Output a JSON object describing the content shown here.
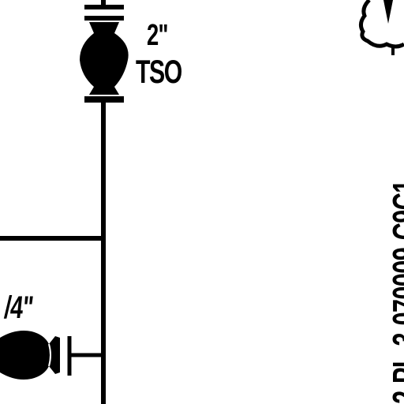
{
  "valve_top": {
    "size": "2\"",
    "type": "TSO"
  },
  "valve_bottom": {
    "size": "/4\""
  },
  "line_tag": "2-PL-3-070009-C9C1",
  "colors": {
    "ink": "#000000",
    "paper": "#ffffff"
  }
}
